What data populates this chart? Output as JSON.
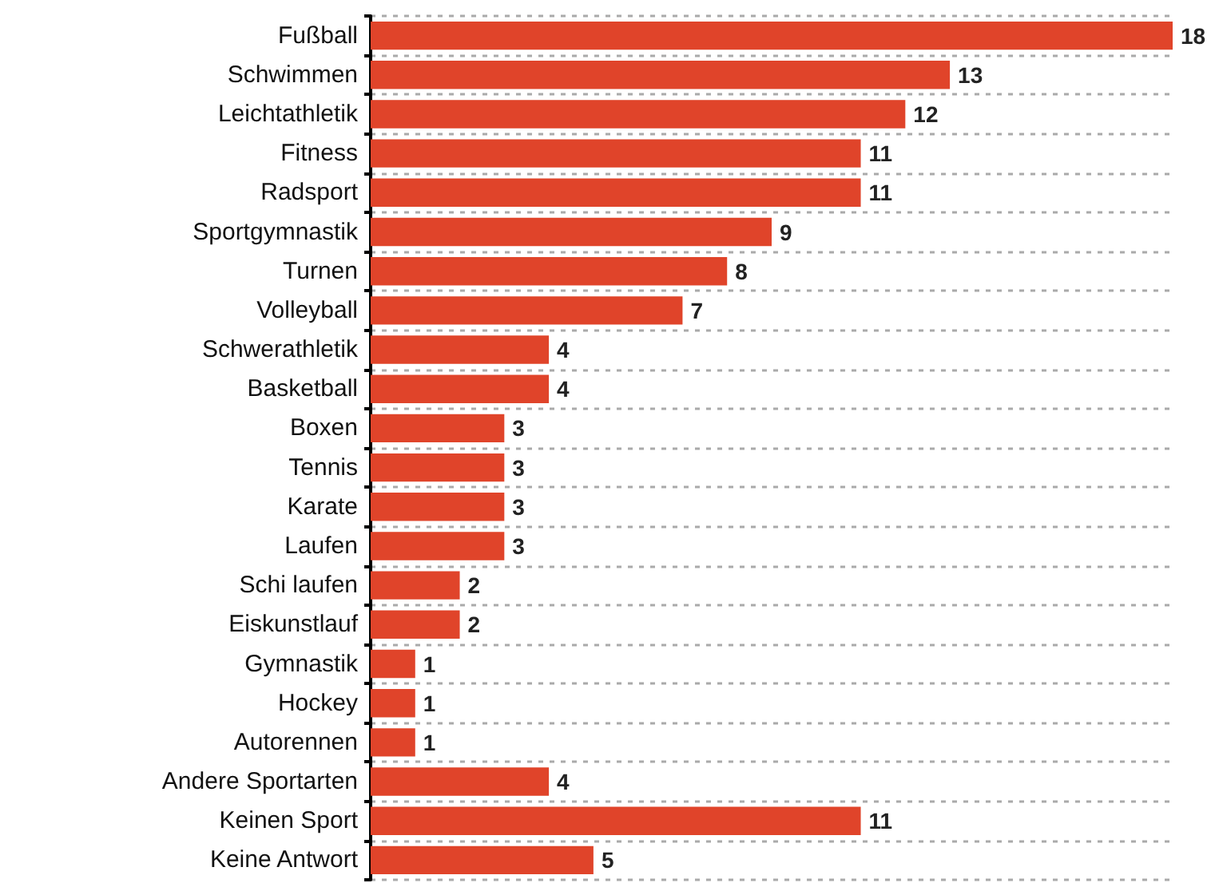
{
  "chart_data": {
    "type": "bar",
    "orientation": "horizontal",
    "categories": [
      "Fußball",
      "Schwimmen",
      "Leichtathletik",
      "Fitness",
      "Radsport",
      "Sportgymnastik",
      "Turnen",
      "Volleyball",
      "Schwerathletik",
      "Basketball",
      "Boxen",
      "Tennis",
      "Karate",
      "Laufen",
      "Schi laufen",
      "Eiskunstlauf",
      "Gymnastik",
      "Hockey",
      "Autorennen",
      "Andere Sportarten",
      "Keinen Sport",
      "Keine Antwort"
    ],
    "values": [
      18,
      13,
      12,
      11,
      11,
      9,
      8,
      7,
      4,
      4,
      3,
      3,
      3,
      3,
      2,
      2,
      1,
      1,
      1,
      4,
      11,
      5
    ],
    "color": "#e0442a",
    "data_labels": true,
    "grid": "y",
    "tick_labels": "y"
  }
}
